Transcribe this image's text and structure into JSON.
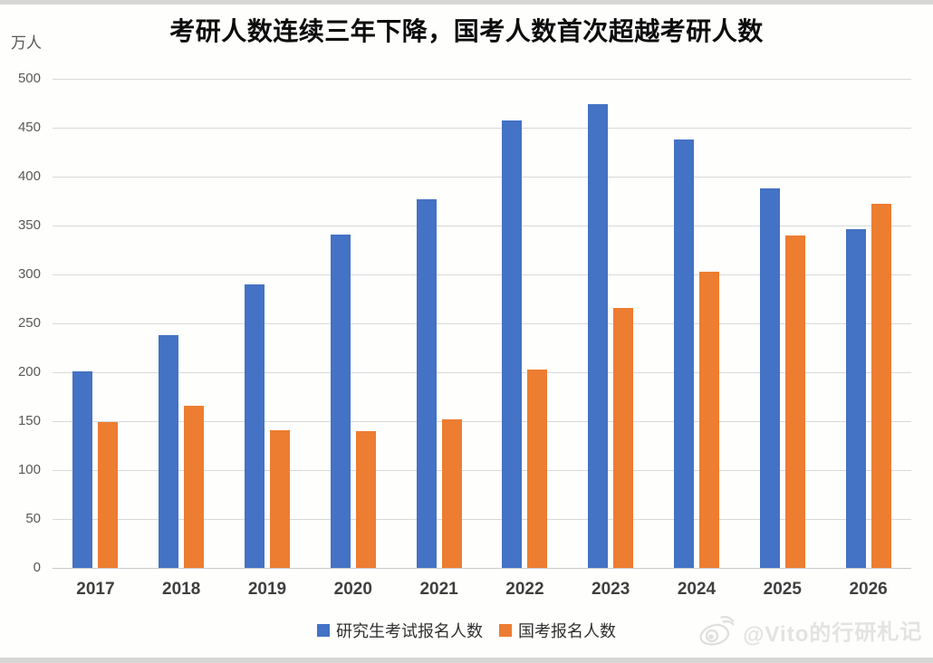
{
  "title": "考研人数连续三年下降，国考人数首次超越考研人数",
  "y_axis_unit": "万人",
  "chart_data": {
    "type": "bar",
    "categories": [
      "2017",
      "2018",
      "2019",
      "2020",
      "2021",
      "2022",
      "2023",
      "2024",
      "2025",
      "2026"
    ],
    "series": [
      {
        "name": "研究生考试报名人数",
        "color": "#4472C4",
        "values": [
          201,
          238,
          290,
          341,
          377,
          457,
          474,
          438,
          388,
          346
        ]
      },
      {
        "name": "国考报名人数",
        "color": "#ED7D31",
        "values": [
          149,
          166,
          141,
          140,
          152,
          203,
          266,
          303,
          340,
          372
        ]
      }
    ],
    "title": "考研人数连续三年下降，国考人数首次超越考研人数",
    "xlabel": "",
    "ylabel": "万人",
    "ylim": [
      0,
      500
    ],
    "ytick_interval": 50,
    "yticks": [
      "500",
      "450",
      "400",
      "350",
      "300",
      "250",
      "200",
      "150",
      "100",
      "50",
      "0"
    ],
    "grid": true,
    "legend_position": "bottom"
  },
  "legend": {
    "items": [
      {
        "label": "研究生考试报名人数",
        "color": "#4472C4"
      },
      {
        "label": "国考报名人数",
        "color": "#ED7D31"
      }
    ]
  },
  "watermark": {
    "text": "@Vito的行研札记",
    "icon": "weibo-icon"
  },
  "colors": {
    "series_blue": "#4472C4",
    "series_orange": "#ED7D31",
    "gridline": "#d9d9d9",
    "axis_text": "#595959",
    "category_text": "#3f3f3f",
    "title_text": "#0d0d0d",
    "watermark_text": "#e3e3e1"
  }
}
